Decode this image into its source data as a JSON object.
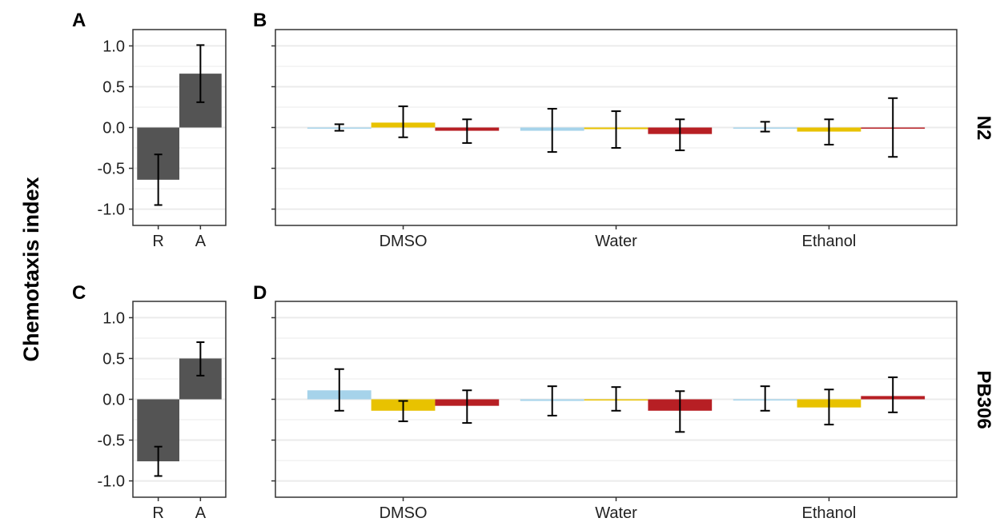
{
  "y_axis_title": "Chemotaxis index",
  "colors": {
    "bar_dark": "#545454",
    "series_1": "#a6d3ea",
    "series_2": "#e8c200",
    "series_3": "#b71f24",
    "grid": "#ebebeb",
    "frame": "#333333",
    "error_bar": "#000000"
  },
  "chart_data": [
    {
      "panel": "A",
      "type": "bar",
      "categories": [
        "R",
        "A"
      ],
      "values": [
        -0.64,
        0.66
      ],
      "errors": [
        [
          -0.95,
          -0.33
        ],
        [
          0.31,
          1.01
        ]
      ],
      "ylim": [
        -1.2,
        1.2
      ],
      "yticks": [
        "-1.0",
        "-0.5",
        "0.0",
        "0.5",
        "1.0"
      ]
    },
    {
      "panel": "B",
      "type": "bar",
      "strip": "N2",
      "categories": [
        "DMSO",
        "Water",
        "Ethanol"
      ],
      "series": [
        {
          "values": [
            0.0,
            -0.04,
            0.0
          ],
          "errors": [
            [
              -0.04,
              0.04
            ],
            [
              -0.3,
              0.23
            ],
            [
              -0.05,
              0.07
            ]
          ]
        },
        {
          "values": [
            0.06,
            -0.02,
            -0.05
          ],
          "errors": [
            [
              -0.12,
              0.26
            ],
            [
              -0.25,
              0.2
            ],
            [
              -0.21,
              0.1
            ]
          ]
        },
        {
          "values": [
            -0.04,
            -0.08,
            0.0
          ],
          "errors": [
            [
              -0.19,
              0.1
            ],
            [
              -0.28,
              0.1
            ],
            [
              -0.36,
              0.36
            ]
          ]
        }
      ],
      "ylim": [
        -1.2,
        1.2
      ]
    },
    {
      "panel": "C",
      "type": "bar",
      "categories": [
        "R",
        "A"
      ],
      "values": [
        -0.76,
        0.5
      ],
      "errors": [
        [
          -0.94,
          -0.58
        ],
        [
          0.29,
          0.7
        ]
      ],
      "ylim": [
        -1.2,
        1.2
      ],
      "yticks": [
        "-1.0",
        "-0.5",
        "0.0",
        "0.5",
        "1.0"
      ]
    },
    {
      "panel": "D",
      "type": "bar",
      "strip": "PB306",
      "categories": [
        "DMSO",
        "Water",
        "Ethanol"
      ],
      "series": [
        {
          "values": [
            0.11,
            -0.02,
            0.0
          ],
          "errors": [
            [
              -0.14,
              0.37
            ],
            [
              -0.2,
              0.16
            ],
            [
              -0.14,
              0.16
            ]
          ]
        },
        {
          "values": [
            -0.14,
            -0.01,
            -0.1
          ],
          "errors": [
            [
              -0.27,
              -0.02
            ],
            [
              -0.14,
              0.15
            ],
            [
              -0.31,
              0.12
            ]
          ]
        },
        {
          "values": [
            -0.08,
            -0.14,
            0.04
          ],
          "errors": [
            [
              -0.29,
              0.11
            ],
            [
              -0.4,
              0.1
            ],
            [
              -0.16,
              0.27
            ]
          ]
        }
      ],
      "ylim": [
        -1.2,
        1.2
      ]
    }
  ]
}
